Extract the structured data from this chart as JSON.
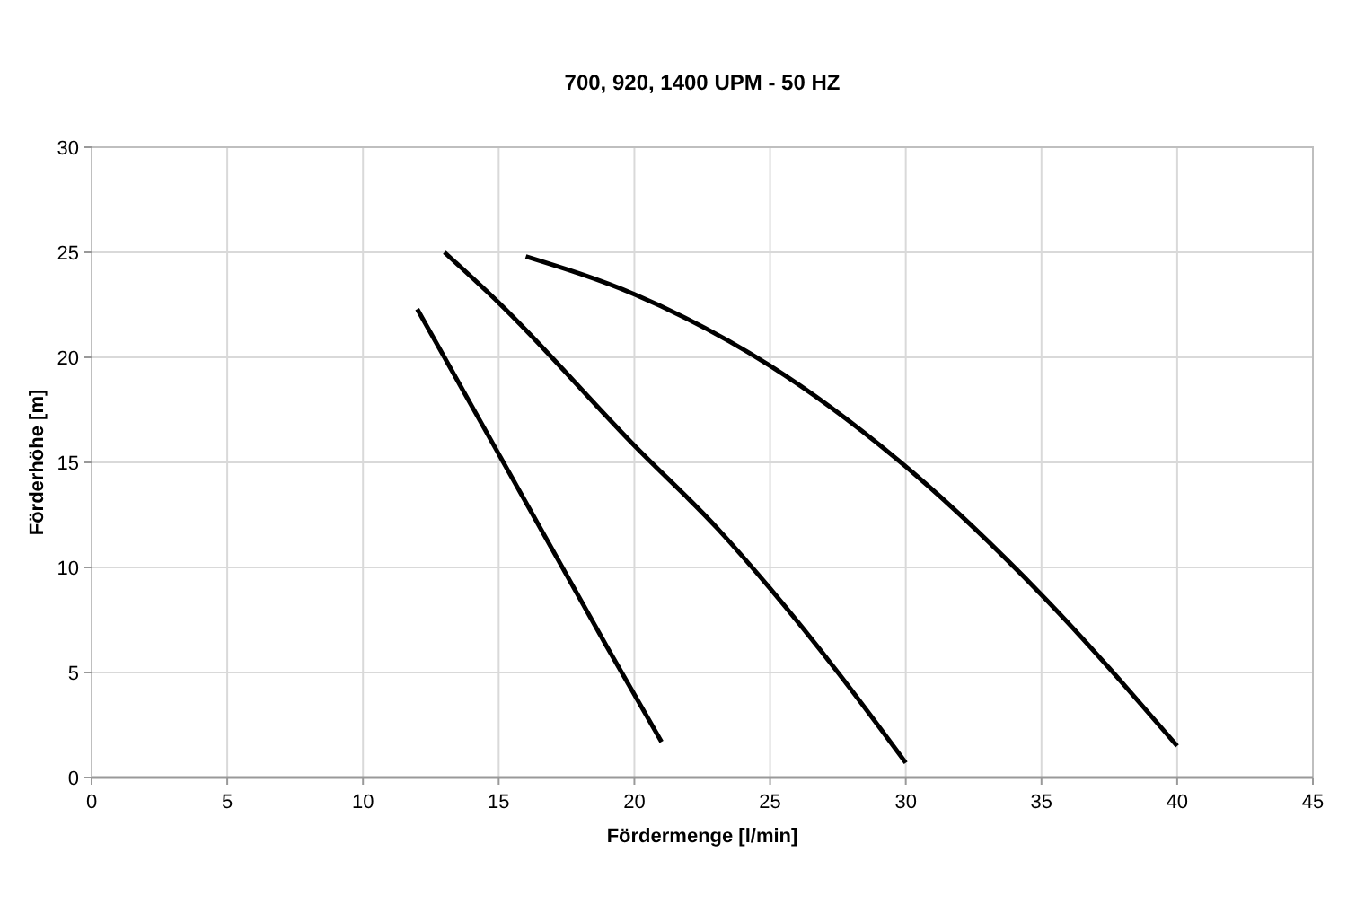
{
  "chart_data": {
    "type": "line",
    "title": "700, 920, 1400 UPM - 50 HZ",
    "xlabel": "Fördermenge [l/min]",
    "ylabel": "Förderhöhe [m]",
    "xlim": [
      0,
      45
    ],
    "xticks": [
      0,
      5,
      10,
      15,
      20,
      25,
      30,
      35,
      40,
      45
    ],
    "ylim": [
      0,
      30
    ],
    "yticks": [
      0,
      5,
      10,
      15,
      20,
      25,
      30
    ],
    "grid": true,
    "marker": "none",
    "line_style": "solid",
    "series": [
      {
        "color": "#000000",
        "x": [
          12,
          15,
          17,
          19,
          21
        ],
        "values": [
          22.3,
          15.4,
          10.8,
          6.2,
          1.7
        ]
      },
      {
        "color": "#000000",
        "x": [
          13,
          15,
          20,
          23.1,
          25,
          27.5,
          30
        ],
        "values": [
          25,
          22.6,
          15.8,
          11.8,
          9,
          5,
          0.7
        ]
      },
      {
        "color": "#000000",
        "x": [
          16,
          20,
          25,
          30,
          35,
          40
        ],
        "values": [
          24.8,
          23,
          19.6,
          14.8,
          8.7,
          1.5
        ]
      }
    ]
  }
}
